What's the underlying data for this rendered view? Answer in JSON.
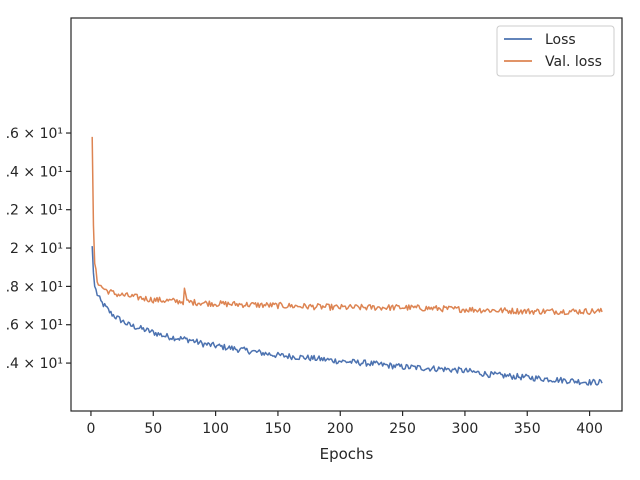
{
  "chart_data": {
    "type": "line",
    "title": "",
    "xlabel": "Epochs",
    "ylabel": "",
    "x_scale": "linear",
    "y_scale": "log",
    "xlim": [
      -16,
      426
    ],
    "ylim": [
      0.335,
      0.54
    ],
    "xticks": [
      {
        "value": 0,
        "label": "0"
      },
      {
        "value": 50,
        "label": "50"
      },
      {
        "value": 100,
        "label": "100"
      },
      {
        "value": 150,
        "label": "150"
      },
      {
        "value": 200,
        "label": "200"
      },
      {
        "value": 250,
        "label": "250"
      },
      {
        "value": 300,
        "label": "300"
      },
      {
        "value": 350,
        "label": "350"
      },
      {
        "value": 400,
        "label": "400"
      }
    ],
    "yticks": [
      {
        "value": 0.36,
        "label": ".4 × 10¹"
      },
      {
        "value": 0.38,
        "label": ".6 × 10¹"
      },
      {
        "value": 0.4,
        "label": ".8 × 10¹"
      },
      {
        "value": 0.42,
        "label": "2 × 10¹"
      },
      {
        "value": 0.44,
        "label": ".2 × 10¹"
      },
      {
        "value": 0.46,
        "label": ".4 × 10¹"
      },
      {
        "value": 0.48,
        "label": ".6 × 10¹"
      }
    ],
    "grid": false,
    "legend_position": "top-right",
    "series": [
      {
        "name": "Loss",
        "color": "#4c72b0",
        "points": [
          [
            1,
            0.421
          ],
          [
            2,
            0.407
          ],
          [
            3,
            0.4
          ],
          [
            5,
            0.396
          ],
          [
            8,
            0.392
          ],
          [
            12,
            0.389
          ],
          [
            16,
            0.386
          ],
          [
            20,
            0.384
          ],
          [
            25,
            0.382
          ],
          [
            30,
            0.38
          ],
          [
            40,
            0.378
          ],
          [
            50,
            0.376
          ],
          [
            60,
            0.374
          ],
          [
            70,
            0.373
          ],
          [
            80,
            0.372
          ],
          [
            90,
            0.37
          ],
          [
            100,
            0.369
          ],
          [
            120,
            0.367
          ],
          [
            140,
            0.365
          ],
          [
            150,
            0.364
          ],
          [
            170,
            0.363
          ],
          [
            200,
            0.361
          ],
          [
            220,
            0.36
          ],
          [
            250,
            0.358
          ],
          [
            280,
            0.357
          ],
          [
            300,
            0.356
          ],
          [
            320,
            0.354
          ],
          [
            340,
            0.353
          ],
          [
            360,
            0.352
          ],
          [
            380,
            0.351
          ],
          [
            400,
            0.35
          ],
          [
            410,
            0.35
          ]
        ],
        "noise": 0.0016
      },
      {
        "name": "Val. loss",
        "color": "#dd8452",
        "points": [
          [
            1,
            0.478
          ],
          [
            2,
            0.432
          ],
          [
            3,
            0.412
          ],
          [
            5,
            0.403
          ],
          [
            8,
            0.4
          ],
          [
            12,
            0.398
          ],
          [
            20,
            0.396
          ],
          [
            30,
            0.395
          ],
          [
            50,
            0.393
          ],
          [
            75,
            0.392
          ],
          [
            100,
            0.391
          ],
          [
            150,
            0.39
          ],
          [
            200,
            0.389
          ],
          [
            250,
            0.389
          ],
          [
            300,
            0.388
          ],
          [
            350,
            0.387
          ],
          [
            400,
            0.387
          ],
          [
            410,
            0.387
          ]
        ],
        "spike": [
          [
            75,
            0.399
          ],
          [
            76,
            0.396
          ]
        ],
        "noise": 0.0016
      }
    ]
  }
}
